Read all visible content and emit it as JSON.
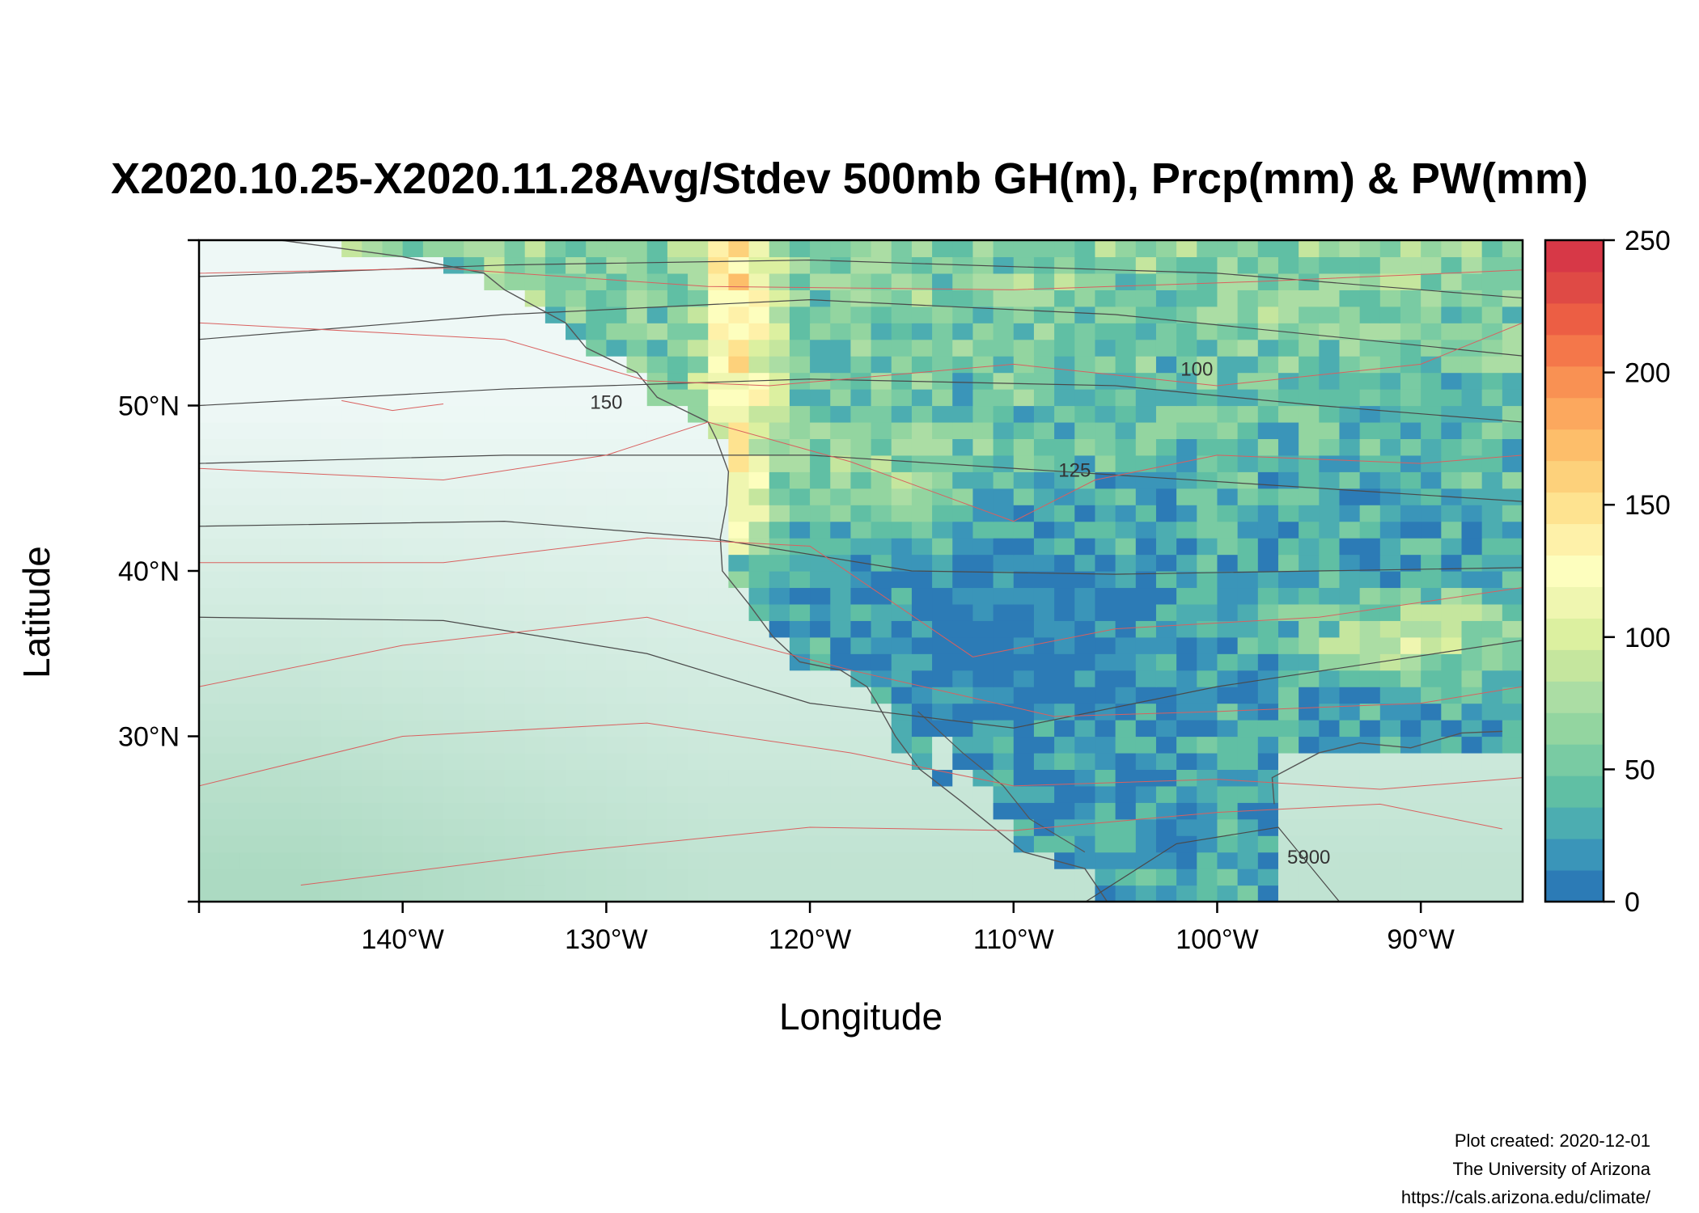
{
  "title": "X2020.10.25-X2020.11.28Avg/Stdev 500mb GH(m), Prcp(mm) & PW(mm)",
  "x_axis": {
    "label": "Longitude",
    "range": [
      -150,
      -85
    ],
    "ticks": [
      {
        "value": -140,
        "label": "140°W"
      },
      {
        "value": -130,
        "label": "130°W"
      },
      {
        "value": -120,
        "label": "120°W"
      },
      {
        "value": -110,
        "label": "110°W"
      },
      {
        "value": -100,
        "label": "100°W"
      },
      {
        "value": -90,
        "label": "90°W"
      }
    ]
  },
  "y_axis": {
    "label": "Latitude",
    "range": [
      20,
      60
    ],
    "ticks": [
      {
        "value": 30,
        "label": "30°N"
      },
      {
        "value": 40,
        "label": "40°N"
      },
      {
        "value": 50,
        "label": "50°N"
      }
    ]
  },
  "colorbar": {
    "range": [
      0,
      250
    ],
    "ticks": [
      {
        "value": 0,
        "label": "0"
      },
      {
        "value": 50,
        "label": "50"
      },
      {
        "value": 100,
        "label": "100"
      },
      {
        "value": 150,
        "label": "150"
      },
      {
        "value": 200,
        "label": "200"
      },
      {
        "value": 250,
        "label": "250"
      }
    ],
    "colors": [
      "#2c7bb6",
      "#3a95b9",
      "#4cadb1",
      "#60bfa4",
      "#79cba3",
      "#93d5a0",
      "#abdda4",
      "#c5e69e",
      "#dcf0a0",
      "#eff6b0",
      "#fdfebe",
      "#fef1a9",
      "#fee390",
      "#fdd17b",
      "#fdbe6a",
      "#fca85e",
      "#f99153",
      "#f4774a",
      "#ec5e44",
      "#df4a45",
      "#d73847"
    ]
  },
  "contour_labels": [
    {
      "text": "100",
      "lon": -101.0,
      "lat": 51.8
    },
    {
      "text": "125",
      "lon": -107.0,
      "lat": 45.7
    },
    {
      "text": "150",
      "lon": -130.0,
      "lat": 49.8
    },
    {
      "text": "5900",
      "lon": -95.5,
      "lat": 22.3
    }
  ],
  "credits": {
    "line1": "Plot created: 2020-12-01",
    "line2": "The University of Arizona",
    "line3": "https://cals.arizona.edu/climate/"
  }
}
